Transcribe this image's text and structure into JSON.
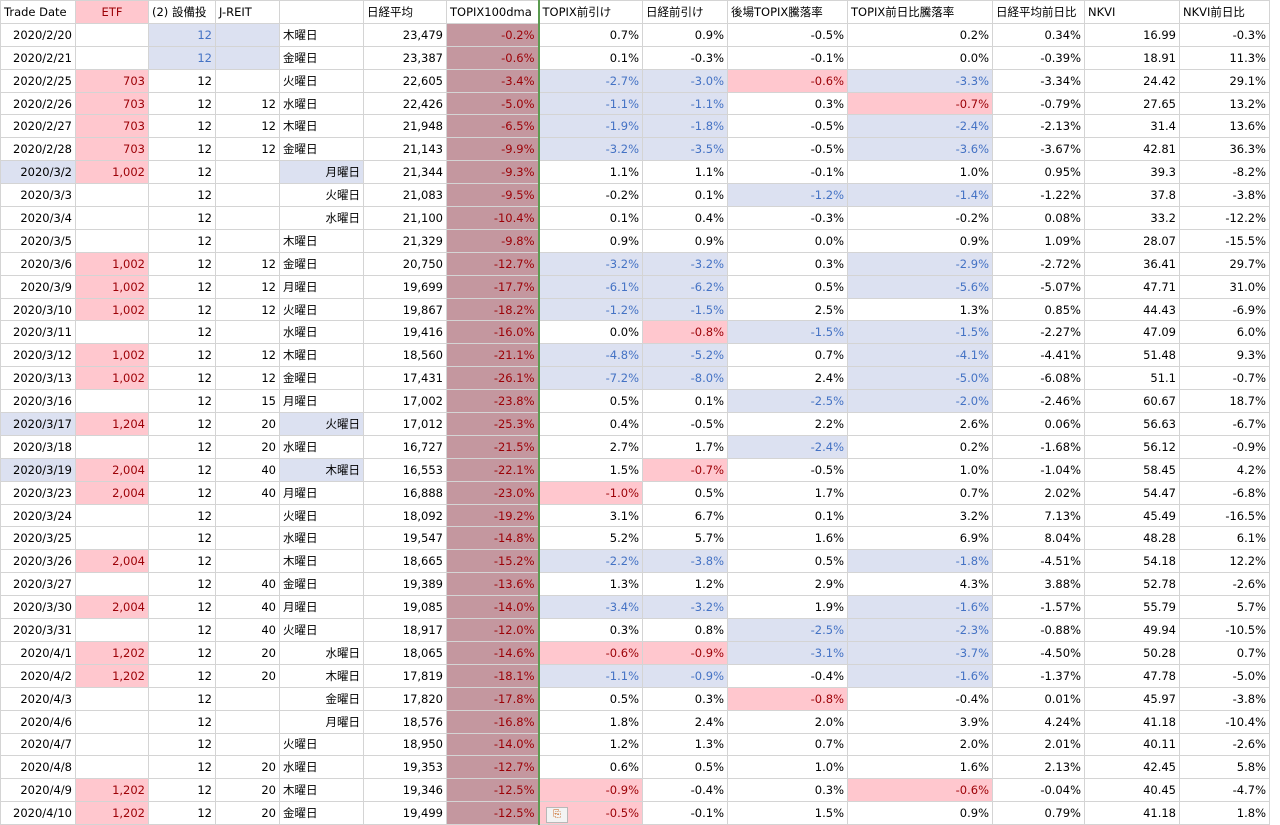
{
  "headers": [
    "Trade Date",
    "ETF",
    "(2) 設備投",
    "J-REIT",
    "",
    "日経平均",
    "TOPIX100dma",
    "TOPIX前引け",
    "日経前引け",
    "後場TOPIX騰落率",
    "TOPIX前日比騰落率",
    "日経平均前日比",
    "NKVI",
    "NKVI前日比"
  ],
  "rows": [
    [
      "2020/2/20",
      "",
      "12",
      "",
      "木曜日",
      "23,479",
      "-0.2%",
      "0.7%",
      "0.9%",
      "-0.5%",
      "0.2%",
      "0.34%",
      "16.99",
      "-0.3%"
    ],
    [
      "2020/2/21",
      "",
      "12",
      "",
      "金曜日",
      "23,387",
      "-0.6%",
      "0.1%",
      "-0.3%",
      "-0.1%",
      "0.0%",
      "-0.39%",
      "18.91",
      "11.3%"
    ],
    [
      "2020/2/25",
      "703",
      "12",
      "",
      "火曜日",
      "22,605",
      "-3.4%",
      "-2.7%",
      "-3.0%",
      "-0.6%",
      "-3.3%",
      "-3.34%",
      "24.42",
      "29.1%"
    ],
    [
      "2020/2/26",
      "703",
      "12",
      "12",
      "水曜日",
      "22,426",
      "-5.0%",
      "-1.1%",
      "-1.1%",
      "0.3%",
      "-0.7%",
      "-0.79%",
      "27.65",
      "13.2%"
    ],
    [
      "2020/2/27",
      "703",
      "12",
      "12",
      "木曜日",
      "21,948",
      "-6.5%",
      "-1.9%",
      "-1.8%",
      "-0.5%",
      "-2.4%",
      "-2.13%",
      "31.4",
      "13.6%"
    ],
    [
      "2020/2/28",
      "703",
      "12",
      "12",
      "金曜日",
      "21,143",
      "-9.9%",
      "-3.2%",
      "-3.5%",
      "-0.5%",
      "-3.6%",
      "-3.67%",
      "42.81",
      "36.3%"
    ],
    [
      "2020/3/2",
      "1,002",
      "12",
      "",
      "月曜日",
      "21,344",
      "-9.3%",
      "1.1%",
      "1.1%",
      "-0.1%",
      "1.0%",
      "0.95%",
      "39.3",
      "-8.2%"
    ],
    [
      "2020/3/3",
      "",
      "12",
      "",
      "火曜日",
      "21,083",
      "-9.5%",
      "-0.2%",
      "0.1%",
      "-1.2%",
      "-1.4%",
      "-1.22%",
      "37.8",
      "-3.8%"
    ],
    [
      "2020/3/4",
      "",
      "12",
      "",
      "水曜日",
      "21,100",
      "-10.4%",
      "0.1%",
      "0.4%",
      "-0.3%",
      "-0.2%",
      "0.08%",
      "33.2",
      "-12.2%"
    ],
    [
      "2020/3/5",
      "",
      "12",
      "",
      "木曜日",
      "21,329",
      "-9.8%",
      "0.9%",
      "0.9%",
      "0.0%",
      "0.9%",
      "1.09%",
      "28.07",
      "-15.5%"
    ],
    [
      "2020/3/6",
      "1,002",
      "12",
      "12",
      "金曜日",
      "20,750",
      "-12.7%",
      "-3.2%",
      "-3.2%",
      "0.3%",
      "-2.9%",
      "-2.72%",
      "36.41",
      "29.7%"
    ],
    [
      "2020/3/9",
      "1,002",
      "12",
      "12",
      "月曜日",
      "19,699",
      "-17.7%",
      "-6.1%",
      "-6.2%",
      "0.5%",
      "-5.6%",
      "-5.07%",
      "47.71",
      "31.0%"
    ],
    [
      "2020/3/10",
      "1,002",
      "12",
      "12",
      "火曜日",
      "19,867",
      "-18.2%",
      "-1.2%",
      "-1.5%",
      "2.5%",
      "1.3%",
      "0.85%",
      "44.43",
      "-6.9%"
    ],
    [
      "2020/3/11",
      "",
      "12",
      "",
      "水曜日",
      "19,416",
      "-16.0%",
      "0.0%",
      "-0.8%",
      "-1.5%",
      "-1.5%",
      "-2.27%",
      "47.09",
      "6.0%"
    ],
    [
      "2020/3/12",
      "1,002",
      "12",
      "12",
      "木曜日",
      "18,560",
      "-21.1%",
      "-4.8%",
      "-5.2%",
      "0.7%",
      "-4.1%",
      "-4.41%",
      "51.48",
      "9.3%"
    ],
    [
      "2020/3/13",
      "1,002",
      "12",
      "12",
      "金曜日",
      "17,431",
      "-26.1%",
      "-7.2%",
      "-8.0%",
      "2.4%",
      "-5.0%",
      "-6.08%",
      "51.1",
      "-0.7%"
    ],
    [
      "2020/3/16",
      "",
      "12",
      "15",
      "月曜日",
      "17,002",
      "-23.8%",
      "0.5%",
      "0.1%",
      "-2.5%",
      "-2.0%",
      "-2.46%",
      "60.67",
      "18.7%"
    ],
    [
      "2020/3/17",
      "1,204",
      "12",
      "20",
      "火曜日",
      "17,012",
      "-25.3%",
      "0.4%",
      "-0.5%",
      "2.2%",
      "2.6%",
      "0.06%",
      "56.63",
      "-6.7%"
    ],
    [
      "2020/3/18",
      "",
      "12",
      "20",
      "水曜日",
      "16,727",
      "-21.5%",
      "2.7%",
      "1.7%",
      "-2.4%",
      "0.2%",
      "-1.68%",
      "56.12",
      "-0.9%"
    ],
    [
      "2020/3/19",
      "2,004",
      "12",
      "40",
      "木曜日",
      "16,553",
      "-22.1%",
      "1.5%",
      "-0.7%",
      "-0.5%",
      "1.0%",
      "-1.04%",
      "58.45",
      "4.2%"
    ],
    [
      "2020/3/23",
      "2,004",
      "12",
      "40",
      "月曜日",
      "16,888",
      "-23.0%",
      "-1.0%",
      "0.5%",
      "1.7%",
      "0.7%",
      "2.02%",
      "54.47",
      "-6.8%"
    ],
    [
      "2020/3/24",
      "",
      "12",
      "",
      "火曜日",
      "18,092",
      "-19.2%",
      "3.1%",
      "6.7%",
      "0.1%",
      "3.2%",
      "7.13%",
      "45.49",
      "-16.5%"
    ],
    [
      "2020/3/25",
      "",
      "12",
      "",
      "水曜日",
      "19,547",
      "-14.8%",
      "5.2%",
      "5.7%",
      "1.6%",
      "6.9%",
      "8.04%",
      "48.28",
      "6.1%"
    ],
    [
      "2020/3/26",
      "2,004",
      "12",
      "",
      "木曜日",
      "18,665",
      "-15.2%",
      "-2.2%",
      "-3.8%",
      "0.5%",
      "-1.8%",
      "-4.51%",
      "54.18",
      "12.2%"
    ],
    [
      "2020/3/27",
      "",
      "12",
      "40",
      "金曜日",
      "19,389",
      "-13.6%",
      "1.3%",
      "1.2%",
      "2.9%",
      "4.3%",
      "3.88%",
      "52.78",
      "-2.6%"
    ],
    [
      "2020/3/30",
      "2,004",
      "12",
      "40",
      "月曜日",
      "19,085",
      "-14.0%",
      "-3.4%",
      "-3.2%",
      "1.9%",
      "-1.6%",
      "-1.57%",
      "55.79",
      "5.7%"
    ],
    [
      "2020/3/31",
      "",
      "12",
      "40",
      "火曜日",
      "18,917",
      "-12.0%",
      "0.3%",
      "0.8%",
      "-2.5%",
      "-2.3%",
      "-0.88%",
      "49.94",
      "-10.5%"
    ],
    [
      "2020/4/1",
      "1,202",
      "12",
      "20",
      "水曜日",
      "18,065",
      "-14.6%",
      "-0.6%",
      "-0.9%",
      "-3.1%",
      "-3.7%",
      "-4.50%",
      "50.28",
      "0.7%"
    ],
    [
      "2020/4/2",
      "1,202",
      "12",
      "20",
      "木曜日",
      "17,819",
      "-18.1%",
      "-1.1%",
      "-0.9%",
      "-0.4%",
      "-1.6%",
      "-1.37%",
      "47.78",
      "-5.0%"
    ],
    [
      "2020/4/3",
      "",
      "12",
      "",
      "金曜日",
      "17,820",
      "-17.8%",
      "0.5%",
      "0.3%",
      "-0.8%",
      "-0.4%",
      "0.01%",
      "45.97",
      "-3.8%"
    ],
    [
      "2020/4/6",
      "",
      "12",
      "",
      "月曜日",
      "18,576",
      "-16.8%",
      "1.8%",
      "2.4%",
      "2.0%",
      "3.9%",
      "4.24%",
      "41.18",
      "-10.4%"
    ],
    [
      "2020/4/7",
      "",
      "12",
      "",
      "火曜日",
      "18,950",
      "-14.0%",
      "1.2%",
      "1.3%",
      "0.7%",
      "2.0%",
      "2.01%",
      "40.11",
      "-2.6%"
    ],
    [
      "2020/4/8",
      "",
      "12",
      "20",
      "水曜日",
      "19,353",
      "-12.7%",
      "0.6%",
      "0.5%",
      "1.0%",
      "1.6%",
      "2.13%",
      "42.45",
      "5.8%"
    ],
    [
      "2020/4/9",
      "1,202",
      "12",
      "20",
      "木曜日",
      "19,346",
      "-12.5%",
      "-0.9%",
      "-0.4%",
      "0.3%",
      "-0.6%",
      "-0.04%",
      "40.45",
      "-4.7%"
    ],
    [
      "2020/4/10",
      "1,202",
      "12",
      "20",
      "金曜日",
      "19,499",
      "-12.5%",
      "-0.5%",
      "-0.1%",
      "1.5%",
      "0.9%",
      "0.79%",
      "41.18",
      "1.8%"
    ]
  ],
  "styles": {
    "0": [
      [
        2,
        "b"
      ],
      [
        3,
        "b"
      ]
    ],
    "1": [
      [
        2,
        "b"
      ],
      [
        3,
        "b"
      ]
    ],
    "2": [
      [
        1,
        "p"
      ],
      [
        7,
        "b"
      ],
      [
        8,
        "b"
      ],
      [
        9,
        "p"
      ],
      [
        10,
        "b"
      ]
    ],
    "3": [
      [
        1,
        "p"
      ],
      [
        7,
        "b"
      ],
      [
        8,
        "b"
      ],
      [
        10,
        "p"
      ]
    ],
    "4": [
      [
        1,
        "p"
      ],
      [
        7,
        "b"
      ],
      [
        8,
        "b"
      ],
      [
        10,
        "b"
      ]
    ],
    "5": [
      [
        1,
        "p"
      ],
      [
        7,
        "b"
      ],
      [
        8,
        "b"
      ],
      [
        10,
        "b"
      ]
    ],
    "6": [
      [
        0,
        "B"
      ],
      [
        1,
        "p"
      ],
      [
        4,
        "B"
      ]
    ],
    "7": [
      [
        9,
        "b"
      ],
      [
        10,
        "b"
      ]
    ],
    "10": [
      [
        1,
        "p"
      ],
      [
        7,
        "b"
      ],
      [
        8,
        "b"
      ],
      [
        10,
        "b"
      ]
    ],
    "11": [
      [
        1,
        "p"
      ],
      [
        7,
        "b"
      ],
      [
        8,
        "b"
      ],
      [
        10,
        "b"
      ]
    ],
    "12": [
      [
        1,
        "p"
      ],
      [
        7,
        "b"
      ],
      [
        8,
        "b"
      ]
    ],
    "13": [
      [
        8,
        "p"
      ],
      [
        9,
        "b"
      ],
      [
        10,
        "b"
      ]
    ],
    "14": [
      [
        1,
        "p"
      ],
      [
        7,
        "b"
      ],
      [
        8,
        "b"
      ],
      [
        10,
        "b"
      ]
    ],
    "15": [
      [
        1,
        "p"
      ],
      [
        7,
        "b"
      ],
      [
        8,
        "b"
      ],
      [
        10,
        "b"
      ]
    ],
    "16": [
      [
        9,
        "b"
      ],
      [
        10,
        "b"
      ]
    ],
    "17": [
      [
        0,
        "B"
      ],
      [
        1,
        "p"
      ],
      [
        4,
        "B"
      ]
    ],
    "18": [
      [
        9,
        "b"
      ]
    ],
    "19": [
      [
        0,
        "B"
      ],
      [
        1,
        "p"
      ],
      [
        4,
        "B"
      ],
      [
        8,
        "p"
      ]
    ],
    "20": [
      [
        1,
        "p"
      ],
      [
        7,
        "p"
      ]
    ],
    "23": [
      [
        1,
        "p"
      ],
      [
        7,
        "b"
      ],
      [
        8,
        "b"
      ],
      [
        10,
        "b"
      ]
    ],
    "25": [
      [
        1,
        "p"
      ],
      [
        7,
        "b"
      ],
      [
        8,
        "b"
      ],
      [
        10,
        "b"
      ]
    ],
    "26": [
      [
        9,
        "b"
      ],
      [
        10,
        "b"
      ]
    ],
    "27": [
      [
        1,
        "p"
      ],
      [
        7,
        "p"
      ],
      [
        8,
        "p"
      ],
      [
        9,
        "b"
      ],
      [
        10,
        "b"
      ]
    ],
    "28": [
      [
        1,
        "p"
      ],
      [
        7,
        "b"
      ],
      [
        8,
        "b"
      ],
      [
        10,
        "b"
      ]
    ],
    "29": [
      [
        9,
        "p"
      ]
    ],
    "33": [
      [
        1,
        "p"
      ],
      [
        7,
        "p"
      ],
      [
        10,
        "p"
      ]
    ],
    "34": [
      [
        1,
        "p"
      ],
      [
        7,
        "p"
      ]
    ]
  },
  "paste_icon": "paste-options-icon"
}
